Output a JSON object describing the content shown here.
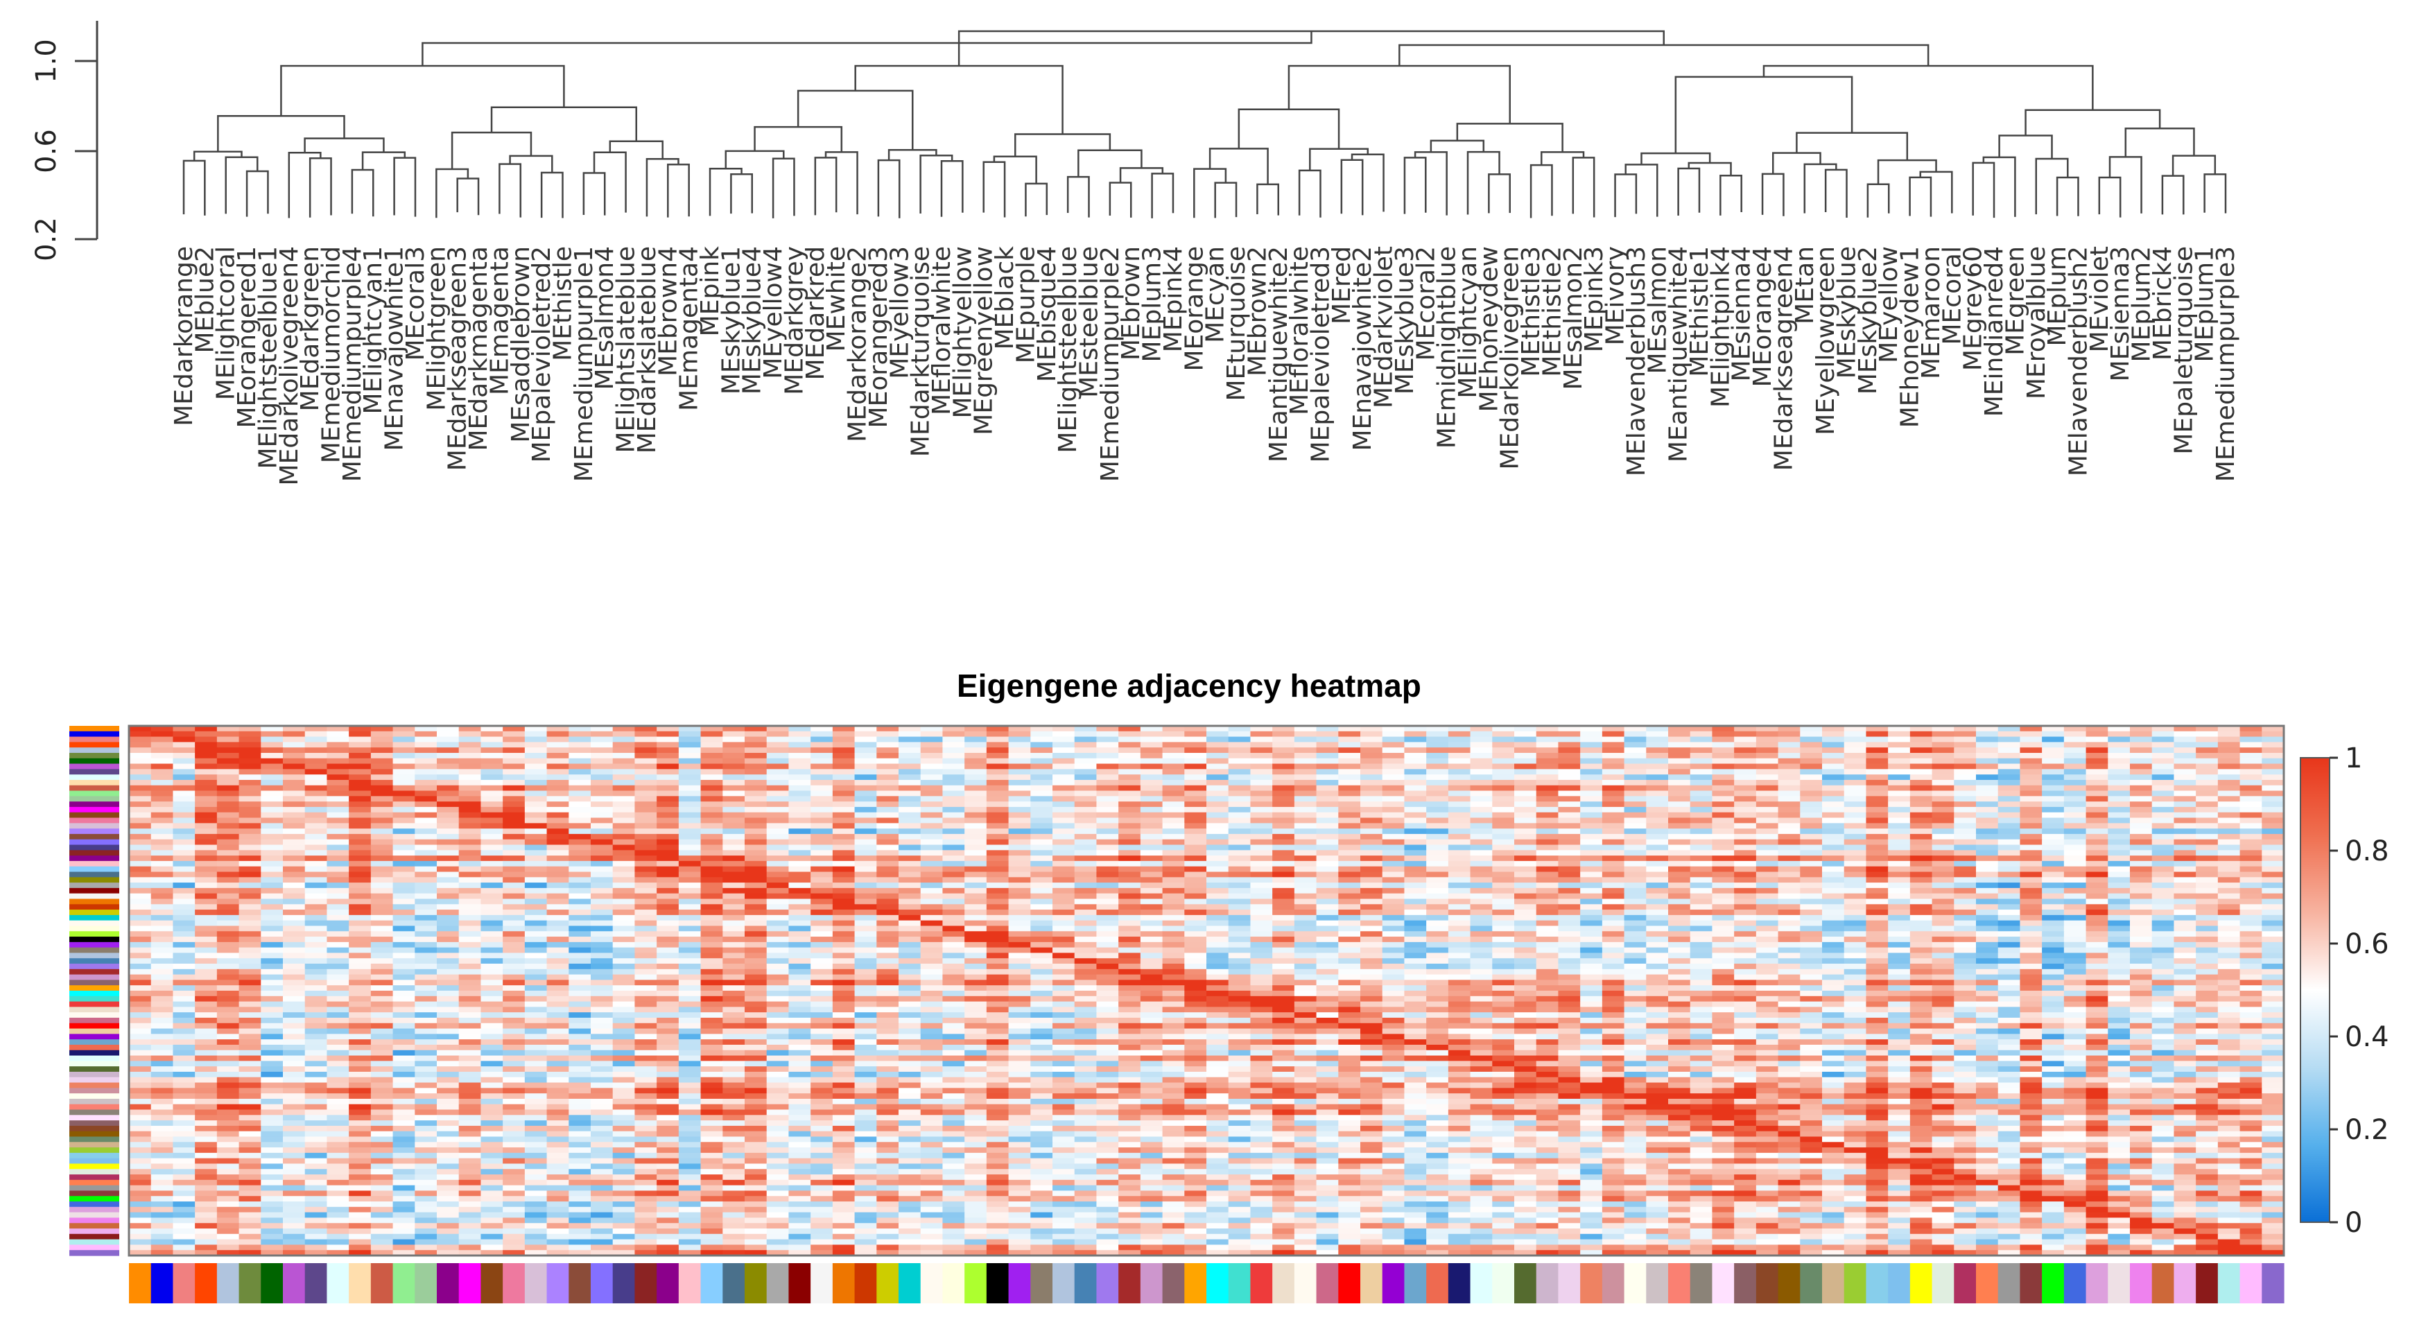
{
  "chart_data": [
    {
      "type": "dendrogram",
      "title": "",
      "ylabel": "",
      "y_ticks": [
        "0.2",
        "0.6",
        "1.0"
      ],
      "ylim": [
        0.2,
        1.2
      ],
      "leaves": [
        "MEdarkorange",
        "MEblue2",
        "MElightcoral",
        "MEorangered1",
        "MElightsteelblue1",
        "MEdarkolivegreen4",
        "MEdarkgreen",
        "MEmediumorchid",
        "MEmediumpurple4",
        "MElightcyan1",
        "MEnavajowhite1",
        "MEcoral3",
        "MElightgreen",
        "MEdarkseagreen3",
        "MEdarkmagenta",
        "MEmagenta",
        "MEsaddlebrown",
        "MEpalevioletred2",
        "MEthistle",
        "MEmediumpurple1",
        "MEsalmon4",
        "MElightslateblue",
        "MEdarkslateblue",
        "MEbrown4",
        "MEmagenta4",
        "MEpink",
        "MEskyblue1",
        "MEskyblue4",
        "MEyellow4",
        "MEdarkgrey",
        "MEdarkred",
        "MEwhite",
        "MEdarkorange2",
        "MEorangered3",
        "MEyellow3",
        "MEdarkturquoise",
        "MEfloralwhite",
        "MElightyellow",
        "MEgreenyellow",
        "MEblack",
        "MEpurple",
        "MEbisque4",
        "MElightsteelblue",
        "MEsteelblue",
        "MEmediumpurple2",
        "MEbrown",
        "MEplum3",
        "MEpink4",
        "MEorange",
        "MEcyan",
        "MEturquoise",
        "MEbrown2",
        "MEantiquewhite2",
        "MEfloralwhite",
        "MEpalevioletred3",
        "MEred",
        "MEnavajowhite2",
        "MEdarkviolet",
        "MEskyblue3",
        "MEcoral2",
        "MEmidnightblue",
        "MElightcyan",
        "MEhoneydew",
        "MEdarkolivegreen",
        "MEthistle3",
        "MEthistle2",
        "MEsalmon2",
        "MEpink3",
        "MEivory",
        "MElavenderblush3",
        "MEsalmon",
        "MEantiquewhite4",
        "MEthistle1",
        "MElightpink4",
        "MEsienna4",
        "MEorange4",
        "MEdarkseagreen4",
        "MEtan",
        "MEyellowgreen",
        "MEskyblue",
        "MEskyblue2",
        "MEyellow",
        "MEhoneydew1",
        "MEmaroon",
        "MEcoral",
        "MEgrey60",
        "MEindianred4",
        "MEgreen",
        "MEroyalblue",
        "MEplum",
        "MElavenderblush2",
        "MEviolet",
        "MEsienna3",
        "MEplum2",
        "MEbrick4",
        "MEpaleturquoise",
        "MEplum1",
        "MEmediumpurple3"
      ]
    },
    {
      "type": "heatmap",
      "title": "Eigengene adjacency heatmap",
      "colorbar": {
        "ticks": [
          "0",
          "0.2",
          "0.4",
          "0.6",
          "0.8",
          "1"
        ],
        "colors": [
          "#0a6fd6",
          "#56b0ec",
          "#b6dcf3",
          "#ffffff",
          "#f7b3a0",
          "#ef6f50",
          "#e8361a"
        ]
      },
      "module_colors": [
        "#ff8c00",
        "#0000ee",
        "#f08080",
        "#ff4500",
        "#b0c4de",
        "#6e8b3d",
        "#006400",
        "#ba55d3",
        "#5d478b",
        "#e0ffff",
        "#ffdead",
        "#cd5b45",
        "#90ee90",
        "#9bcd9b",
        "#8b008b",
        "#ff00ff",
        "#8b4513",
        "#ee799f",
        "#d8bfd8",
        "#ab82ff",
        "#8b4c39",
        "#8470ff",
        "#483d8b",
        "#8b2323",
        "#8b008b",
        "#ffc0cb",
        "#87ceff",
        "#4a708b",
        "#8b8b00",
        "#a9a9a9",
        "#8b0000",
        "#f5f5f5",
        "#ee7600",
        "#cd3700",
        "#cdcd00",
        "#00ced1",
        "#fffaf0",
        "#ffffe0",
        "#adff2f",
        "#000000",
        "#a020f0",
        "#8b7d6b",
        "#b0c4de",
        "#4682b4",
        "#9f79ee",
        "#a52a2a",
        "#cd96cd",
        "#8b636c",
        "#ffa500",
        "#00ffff",
        "#40e0d0",
        "#ee3b3b",
        "#eedfcc",
        "#fffaf0",
        "#cd6889",
        "#ff0000",
        "#eecfa1",
        "#9400d3",
        "#6ca6cd",
        "#ee6a50",
        "#191970",
        "#e0ffff",
        "#f0fff0",
        "#556b2f",
        "#cdb5cd",
        "#eed2ee",
        "#ee8262",
        "#cd919e",
        "#fffff0",
        "#cdc1c5",
        "#fa8072",
        "#8b8378",
        "#ffe1ff",
        "#8b5f65",
        "#8b4726",
        "#8b5a00",
        "#698b69",
        "#d2b48c",
        "#9acd32",
        "#87ceeb",
        "#7ec0ee",
        "#ffff00",
        "#e0eee0",
        "#b03060",
        "#ff7f50",
        "#999999",
        "#8b3a3a",
        "#00ff00",
        "#4169e1",
        "#dda0dd",
        "#eee0e5",
        "#ee82ee",
        "#cd6839",
        "#eeaeee",
        "#8b1a1a",
        "#afeeee",
        "#ffbbff",
        "#8968cd"
      ]
    }
  ]
}
